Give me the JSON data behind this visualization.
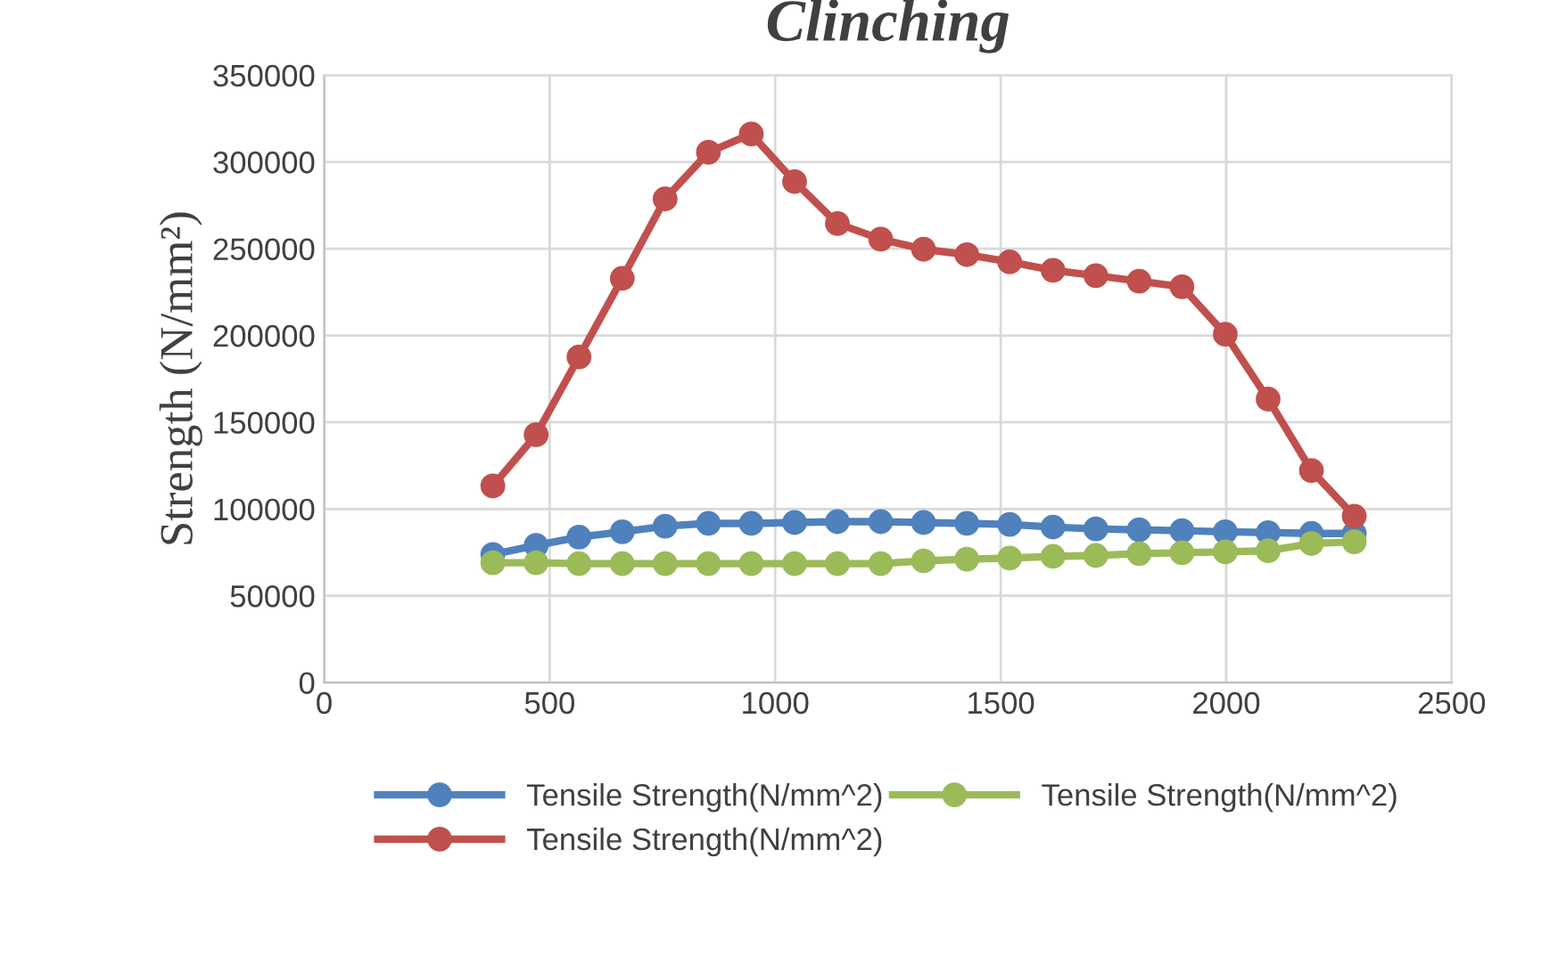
{
  "chart_data": {
    "type": "line",
    "title": "Clinching",
    "ylabel": "Strength (N/mm²)",
    "x": [
      374,
      470,
      565,
      661,
      756,
      852,
      947,
      1043,
      1138,
      1234,
      1329,
      1425,
      1520,
      1616,
      1711,
      1807,
      1902,
      1998,
      2093,
      2189,
      2284
    ],
    "xlim": [
      0,
      2500
    ],
    "xticks": [
      0,
      500,
      1000,
      1500,
      2000,
      2500
    ],
    "ylim": [
      0,
      350000
    ],
    "yticks": [
      0,
      50000,
      100000,
      150000,
      200000,
      250000,
      300000,
      350000
    ],
    "grid": true,
    "marker": "circle",
    "legend": "bottom",
    "series": [
      {
        "name": "Tensile Strength(N/mm^2)",
        "color": "#4f81bd",
        "values": [
          73800,
          79000,
          83800,
          86900,
          90100,
          91700,
          91700,
          92200,
          92700,
          92700,
          92200,
          91700,
          91100,
          89600,
          88500,
          88000,
          87500,
          86900,
          86400,
          85900,
          85900
        ]
      },
      {
        "name": "Tensile Strength(N/mm^2)",
        "color": "#c0504d",
        "values": [
          113300,
          142800,
          187600,
          232900,
          278700,
          305600,
          316100,
          288700,
          264500,
          255500,
          249700,
          246600,
          242400,
          237600,
          234500,
          231300,
          228100,
          200700,
          163300,
          122200,
          95900
        ]
      },
      {
        "name": "Tensile Strength(N/mm^2)",
        "color": "#9bbb59",
        "values": [
          69000,
          69000,
          68500,
          68500,
          68500,
          68500,
          68500,
          68500,
          68500,
          68500,
          70100,
          71100,
          71700,
          72700,
          73200,
          74300,
          74800,
          75300,
          75900,
          80100,
          81100
        ]
      }
    ]
  }
}
